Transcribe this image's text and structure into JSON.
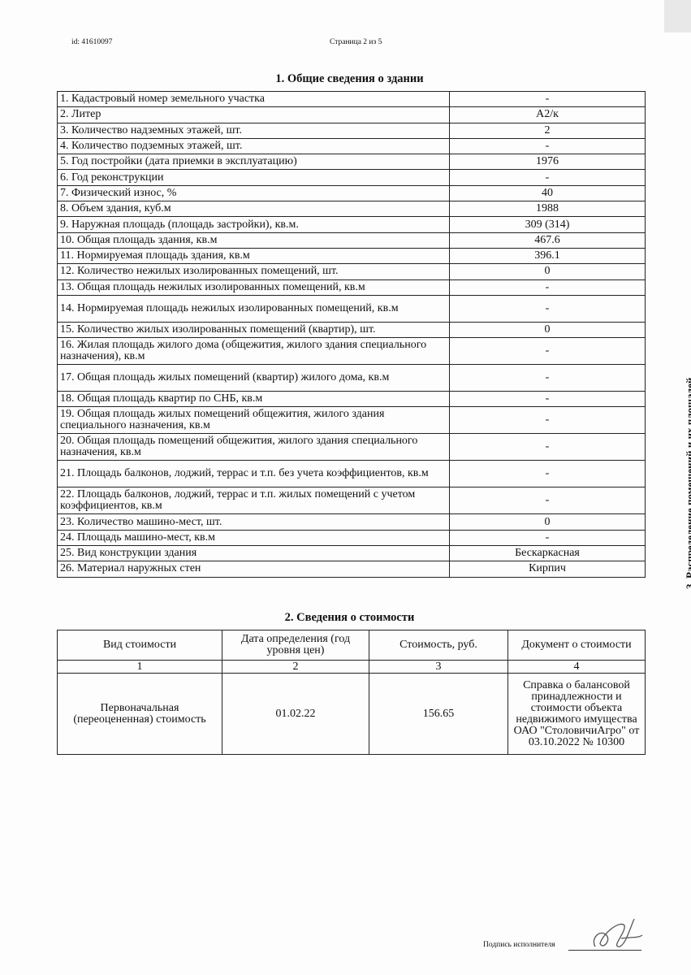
{
  "header": {
    "id": "id: 41610097",
    "page": "Страница 2 из 5"
  },
  "section1": {
    "title": "1. Общие сведения о здании",
    "rows": [
      {
        "label": "1. Кадастровый номер земельного участка",
        "value": "-",
        "h": "s"
      },
      {
        "label": "2. Литер",
        "value": "А2/к",
        "h": "s"
      },
      {
        "label": "3. Количество надземных этажей, шт.",
        "value": "2",
        "h": "s"
      },
      {
        "label": "4. Количество подземных этажей, шт.",
        "value": "-",
        "h": "s"
      },
      {
        "label": "5. Год постройки (дата приемки в эксплуатацию)",
        "value": "1976",
        "h": "s"
      },
      {
        "label": "6. Год реконструкции",
        "value": "-",
        "h": "s"
      },
      {
        "label": "7. Физический износ, %",
        "value": "40",
        "h": "s"
      },
      {
        "label": "8. Объем здания, куб.м",
        "value": "1988",
        "h": "s"
      },
      {
        "label": "9. Наружная площадь (площадь застройки), кв.м.",
        "value": "309 (314)",
        "h": "s"
      },
      {
        "label": "10. Общая площадь здания, кв.м",
        "value": "467.6",
        "h": "s"
      },
      {
        "label": "11. Нормируемая площадь здания, кв.м",
        "value": "396.1",
        "h": "s"
      },
      {
        "label": "12. Количество нежилых изолированных помещений, шт.",
        "value": "0",
        "h": "s"
      },
      {
        "label": "13. Общая площадь нежилых изолированных помещений, кв.м",
        "value": "-",
        "h": "s"
      },
      {
        "label": "14. Нормируемая площадь нежилых изолированных помещений, кв.м",
        "value": "-",
        "h": "d"
      },
      {
        "label": "15. Количество жилых изолированных помещений (квартир), шт.",
        "value": "0",
        "h": "s"
      },
      {
        "label": "16. Жилая площадь жилого дома (общежития, жилого здания специального назначения), кв.м",
        "value": "-",
        "h": "d"
      },
      {
        "label": "17. Общая площадь жилых помещений (квартир) жилого дома, кв.м",
        "value": "-",
        "h": "d"
      },
      {
        "label": "18. Общая площадь квартир по СНБ, кв.м",
        "value": "-",
        "h": "s"
      },
      {
        "label": "19. Общая площадь жилых помещений общежития, жилого здания специального назначения, кв.м",
        "value": "-",
        "h": "d"
      },
      {
        "label": "20. Общая площадь помещений общежития, жилого здания специального назначения, кв.м",
        "value": "-",
        "h": "d"
      },
      {
        "label": "21. Площадь балконов, лоджий, террас и т.п. без учета коэффициентов, кв.м",
        "value": "-",
        "h": "d"
      },
      {
        "label": "22. Площадь балконов, лоджий, террас и т.п. жилых помещений с учетом коэффициентов, кв.м",
        "value": "-",
        "h": "d"
      },
      {
        "label": "23. Количество машино-мест, шт.",
        "value": "0",
        "h": "s"
      },
      {
        "label": "24. Площадь машино-мест, кв.м",
        "value": "-",
        "h": "s"
      },
      {
        "label": "25. Вид конструкции здания",
        "value": "Бескаркасная",
        "h": "s"
      },
      {
        "label": "26. Материал наружных стен",
        "value": "Кирпич",
        "h": "s"
      }
    ]
  },
  "section2": {
    "title": "2. Сведения о стоимости",
    "headers": [
      "Вид стоимости",
      "Дата определения (год уровня цен)",
      "Стоимость, руб.",
      "Документ о стоимости"
    ],
    "numbers": [
      "1",
      "2",
      "3",
      "4"
    ],
    "row": [
      "Первоначальная (переоцененная) стоимость",
      "01.02.22",
      "156.65",
      "Справка о балансовой принадлежности и стоимости объекта недвижимого имущества ОАО \"СтоловичиАгро\" от 03.10.2022 № 10300"
    ]
  },
  "side_text": "3. Распределение помещений и их площадей",
  "footer": {
    "signature_label": "Подпись исполнителя"
  }
}
